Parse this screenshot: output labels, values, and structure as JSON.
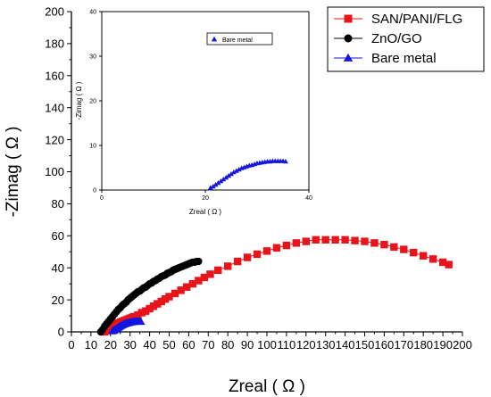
{
  "chart_data": [
    {
      "type": "scatter",
      "xlabel": "Zreal ( Ω )",
      "ylabel": "-Zimag ( Ω )",
      "xlim": [
        0,
        200
      ],
      "ylim": [
        0,
        200
      ],
      "xticks": [
        "0",
        "10",
        "20",
        "30",
        "40",
        "50",
        "60",
        "70",
        "80",
        "90",
        "100",
        "110",
        "120",
        "130",
        "140",
        "150",
        "160",
        "170",
        "180",
        "190",
        "200"
      ],
      "yticks": [
        "0",
        "20",
        "40",
        "60",
        "80",
        "100",
        "120",
        "140",
        "160",
        "180",
        "200"
      ],
      "legend_position": "top-right",
      "series": [
        {
          "name": "SAN/PANI/FLG",
          "color": "#e8141b",
          "marker": "square",
          "x": [
            17,
            18,
            19,
            20,
            21,
            22,
            23,
            24,
            25,
            26,
            27,
            28,
            29,
            30,
            31,
            32,
            34,
            36,
            38,
            40,
            42,
            44,
            46,
            48,
            50,
            53,
            56,
            59,
            62,
            65,
            68,
            71,
            75,
            80,
            85,
            90,
            95,
            100,
            105,
            110,
            115,
            120,
            125,
            130,
            135,
            140,
            145,
            150,
            155,
            160,
            165,
            170,
            175,
            180,
            185,
            190,
            193
          ],
          "y": [
            0,
            1,
            2,
            3,
            4,
            4.5,
            5,
            5.5,
            6,
            6.5,
            7,
            7.5,
            8,
            8.5,
            9,
            9.5,
            10.5,
            12,
            13,
            14.5,
            16,
            17.5,
            19,
            20.5,
            22,
            24,
            26,
            28,
            30,
            32,
            34,
            36,
            38.5,
            41,
            44,
            46.5,
            48.5,
            50.5,
            52.5,
            54,
            55.5,
            56.5,
            57.5,
            57.5,
            57.5,
            57.5,
            57,
            56.5,
            55.5,
            54.5,
            53,
            51.5,
            49.5,
            47.5,
            45.5,
            43.5,
            42
          ]
        },
        {
          "name": "ZnO/GO",
          "color": "#000000",
          "marker": "circle",
          "x": [
            15,
            16,
            17,
            18,
            19,
            20,
            21,
            22,
            23,
            24,
            25,
            26,
            27,
            28,
            29,
            30,
            31,
            32,
            33,
            34,
            35,
            36,
            37,
            38,
            39,
            40,
            41,
            42,
            43,
            44,
            45,
            46,
            47,
            48,
            49,
            50,
            51,
            52,
            53,
            54,
            55,
            56,
            57,
            58,
            59,
            60,
            61,
            62,
            63,
            64,
            65
          ],
          "y": [
            0,
            1.5,
            3.5,
            5,
            6.5,
            8,
            9.5,
            11,
            12.5,
            14,
            15,
            16.5,
            17.5,
            18.5,
            20,
            21,
            22,
            23,
            24,
            25,
            25.5,
            26.5,
            27.5,
            28,
            29,
            30,
            30.5,
            31.5,
            32,
            33,
            33.5,
            34.5,
            35,
            35.5,
            36.5,
            37,
            37.5,
            38.5,
            39,
            39.5,
            40,
            40.5,
            41,
            41.5,
            42,
            42.5,
            43,
            43.5,
            43.5,
            44,
            44
          ]
        },
        {
          "name": "Bare metal",
          "color": "#1515e0",
          "marker": "triangle",
          "x": [
            21,
            21.5,
            22,
            22.5,
            23,
            23.5,
            24,
            24.5,
            25,
            25.5,
            26,
            26.5,
            27,
            27.5,
            28,
            28.5,
            29,
            29.5,
            30,
            30.5,
            31,
            31.5,
            32,
            32.5,
            33,
            33.5,
            34,
            34.5,
            35,
            35.5
          ],
          "y": [
            0.5,
            0.8,
            1.2,
            1.6,
            2,
            2.4,
            2.8,
            3.2,
            3.6,
            4,
            4.3,
            4.6,
            4.9,
            5.1,
            5.3,
            5.5,
            5.6,
            5.8,
            6,
            6.1,
            6.2,
            6.3,
            6.4,
            6.4,
            6.5,
            6.5,
            6.5,
            6.5,
            6.5,
            6.4
          ]
        }
      ]
    },
    {
      "type": "scatter",
      "xlabel": "Zreal ( Ω )",
      "ylabel": "-Zimag ( Ω )",
      "xlim": [
        0,
        40
      ],
      "ylim": [
        0,
        40
      ],
      "xticks": [
        "0",
        "20",
        "40"
      ],
      "yticks": [
        "0",
        "10",
        "20",
        "30",
        "40"
      ],
      "legend_position": "top-right",
      "series": [
        {
          "name": "Bare metal",
          "color": "#1515e0",
          "marker": "triangle",
          "x": [
            21,
            21.5,
            22,
            22.5,
            23,
            23.5,
            24,
            24.5,
            25,
            25.5,
            26,
            26.5,
            27,
            27.5,
            28,
            28.5,
            29,
            29.5,
            30,
            30.5,
            31,
            31.5,
            32,
            32.5,
            33,
            33.5,
            34,
            34.5,
            35,
            35.5
          ],
          "y": [
            0.5,
            0.8,
            1.2,
            1.6,
            2,
            2.4,
            2.8,
            3.2,
            3.6,
            4,
            4.3,
            4.6,
            4.9,
            5.1,
            5.3,
            5.5,
            5.6,
            5.8,
            6,
            6.1,
            6.2,
            6.3,
            6.4,
            6.4,
            6.5,
            6.5,
            6.5,
            6.5,
            6.5,
            6.4
          ]
        }
      ]
    }
  ]
}
